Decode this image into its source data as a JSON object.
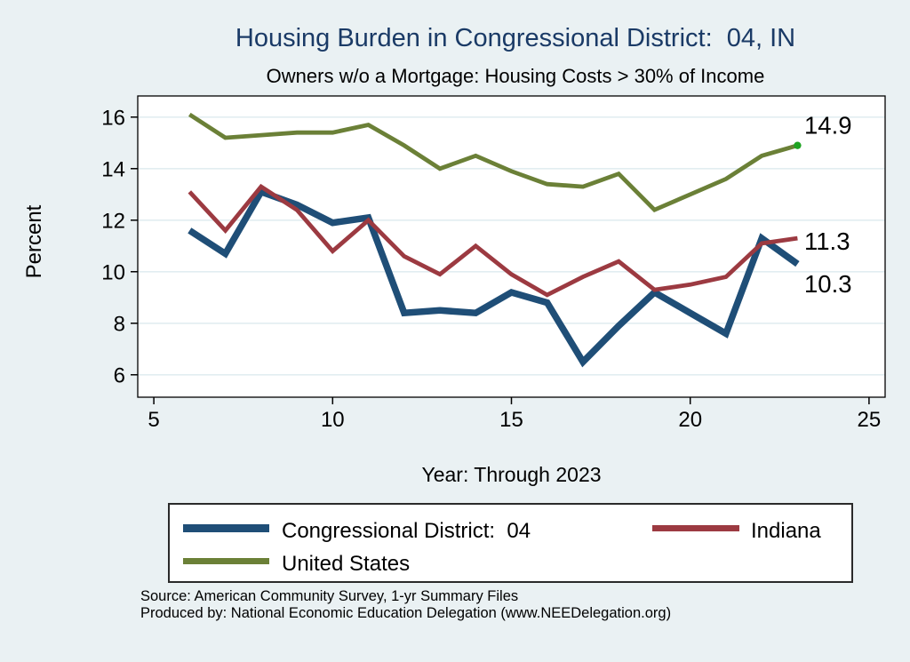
{
  "title": "Housing Burden in Congressional District:  04, IN",
  "subtitle": "Owners w/o a Mortgage: Housing Costs > 30% of Income",
  "chart_data": {
    "type": "line",
    "x": [
      6,
      7,
      8,
      9,
      10,
      11,
      12,
      13,
      14,
      15,
      16,
      17,
      18,
      19,
      20,
      21,
      22,
      23
    ],
    "series": [
      {
        "name": "Congressional District:  04",
        "color": "#1f4e77",
        "line_width": 7.5,
        "values": [
          11.6,
          10.7,
          13.1,
          12.6,
          11.9,
          12.1,
          8.4,
          8.5,
          8.4,
          9.2,
          8.8,
          6.5,
          7.9,
          9.2,
          8.4,
          7.6,
          11.3,
          10.3
        ],
        "end_label": "10.3"
      },
      {
        "name": "Indiana",
        "color": "#9c3a41",
        "line_width": 4.8,
        "values": [
          13.1,
          11.6,
          13.3,
          12.4,
          10.8,
          12.0,
          10.6,
          9.9,
          11.0,
          9.9,
          9.1,
          9.8,
          10.4,
          9.3,
          9.5,
          9.8,
          11.1,
          11.3
        ],
        "end_label": "11.3"
      },
      {
        "name": "United States",
        "color": "#6b8037",
        "line_width": 4.8,
        "values": [
          16.1,
          15.2,
          15.3,
          15.4,
          15.4,
          15.7,
          14.9,
          14.0,
          14.5,
          13.9,
          13.4,
          13.3,
          13.8,
          12.4,
          13.0,
          13.6,
          14.5,
          14.9
        ],
        "end_label": "14.9",
        "end_marker": true,
        "end_marker_color": "#1ea321"
      }
    ],
    "xlabel": "Year: Through 2023",
    "ylabel": "Percent",
    "xticks": [
      5,
      10,
      15,
      20,
      25
    ],
    "yticks": [
      6,
      8,
      10,
      12,
      14,
      16
    ],
    "xlim": [
      4.55,
      25.45
    ],
    "ylim": [
      5.13,
      16.82
    ],
    "grid": "horizontal",
    "legend_position": "bottom"
  },
  "footer": {
    "source": "Source: American Community Survey, 1-yr Summary Files",
    "produced_by": "Produced by: National Economic Education Delegation (www.NEEDelegation.org)"
  },
  "colors": {
    "background": "#eaf1f3",
    "plot_background": "#ffffff",
    "grid_line": "#e2edf1",
    "axis": "#000000",
    "title_text": "#1a3a66",
    "value_label_text": "#000000"
  }
}
